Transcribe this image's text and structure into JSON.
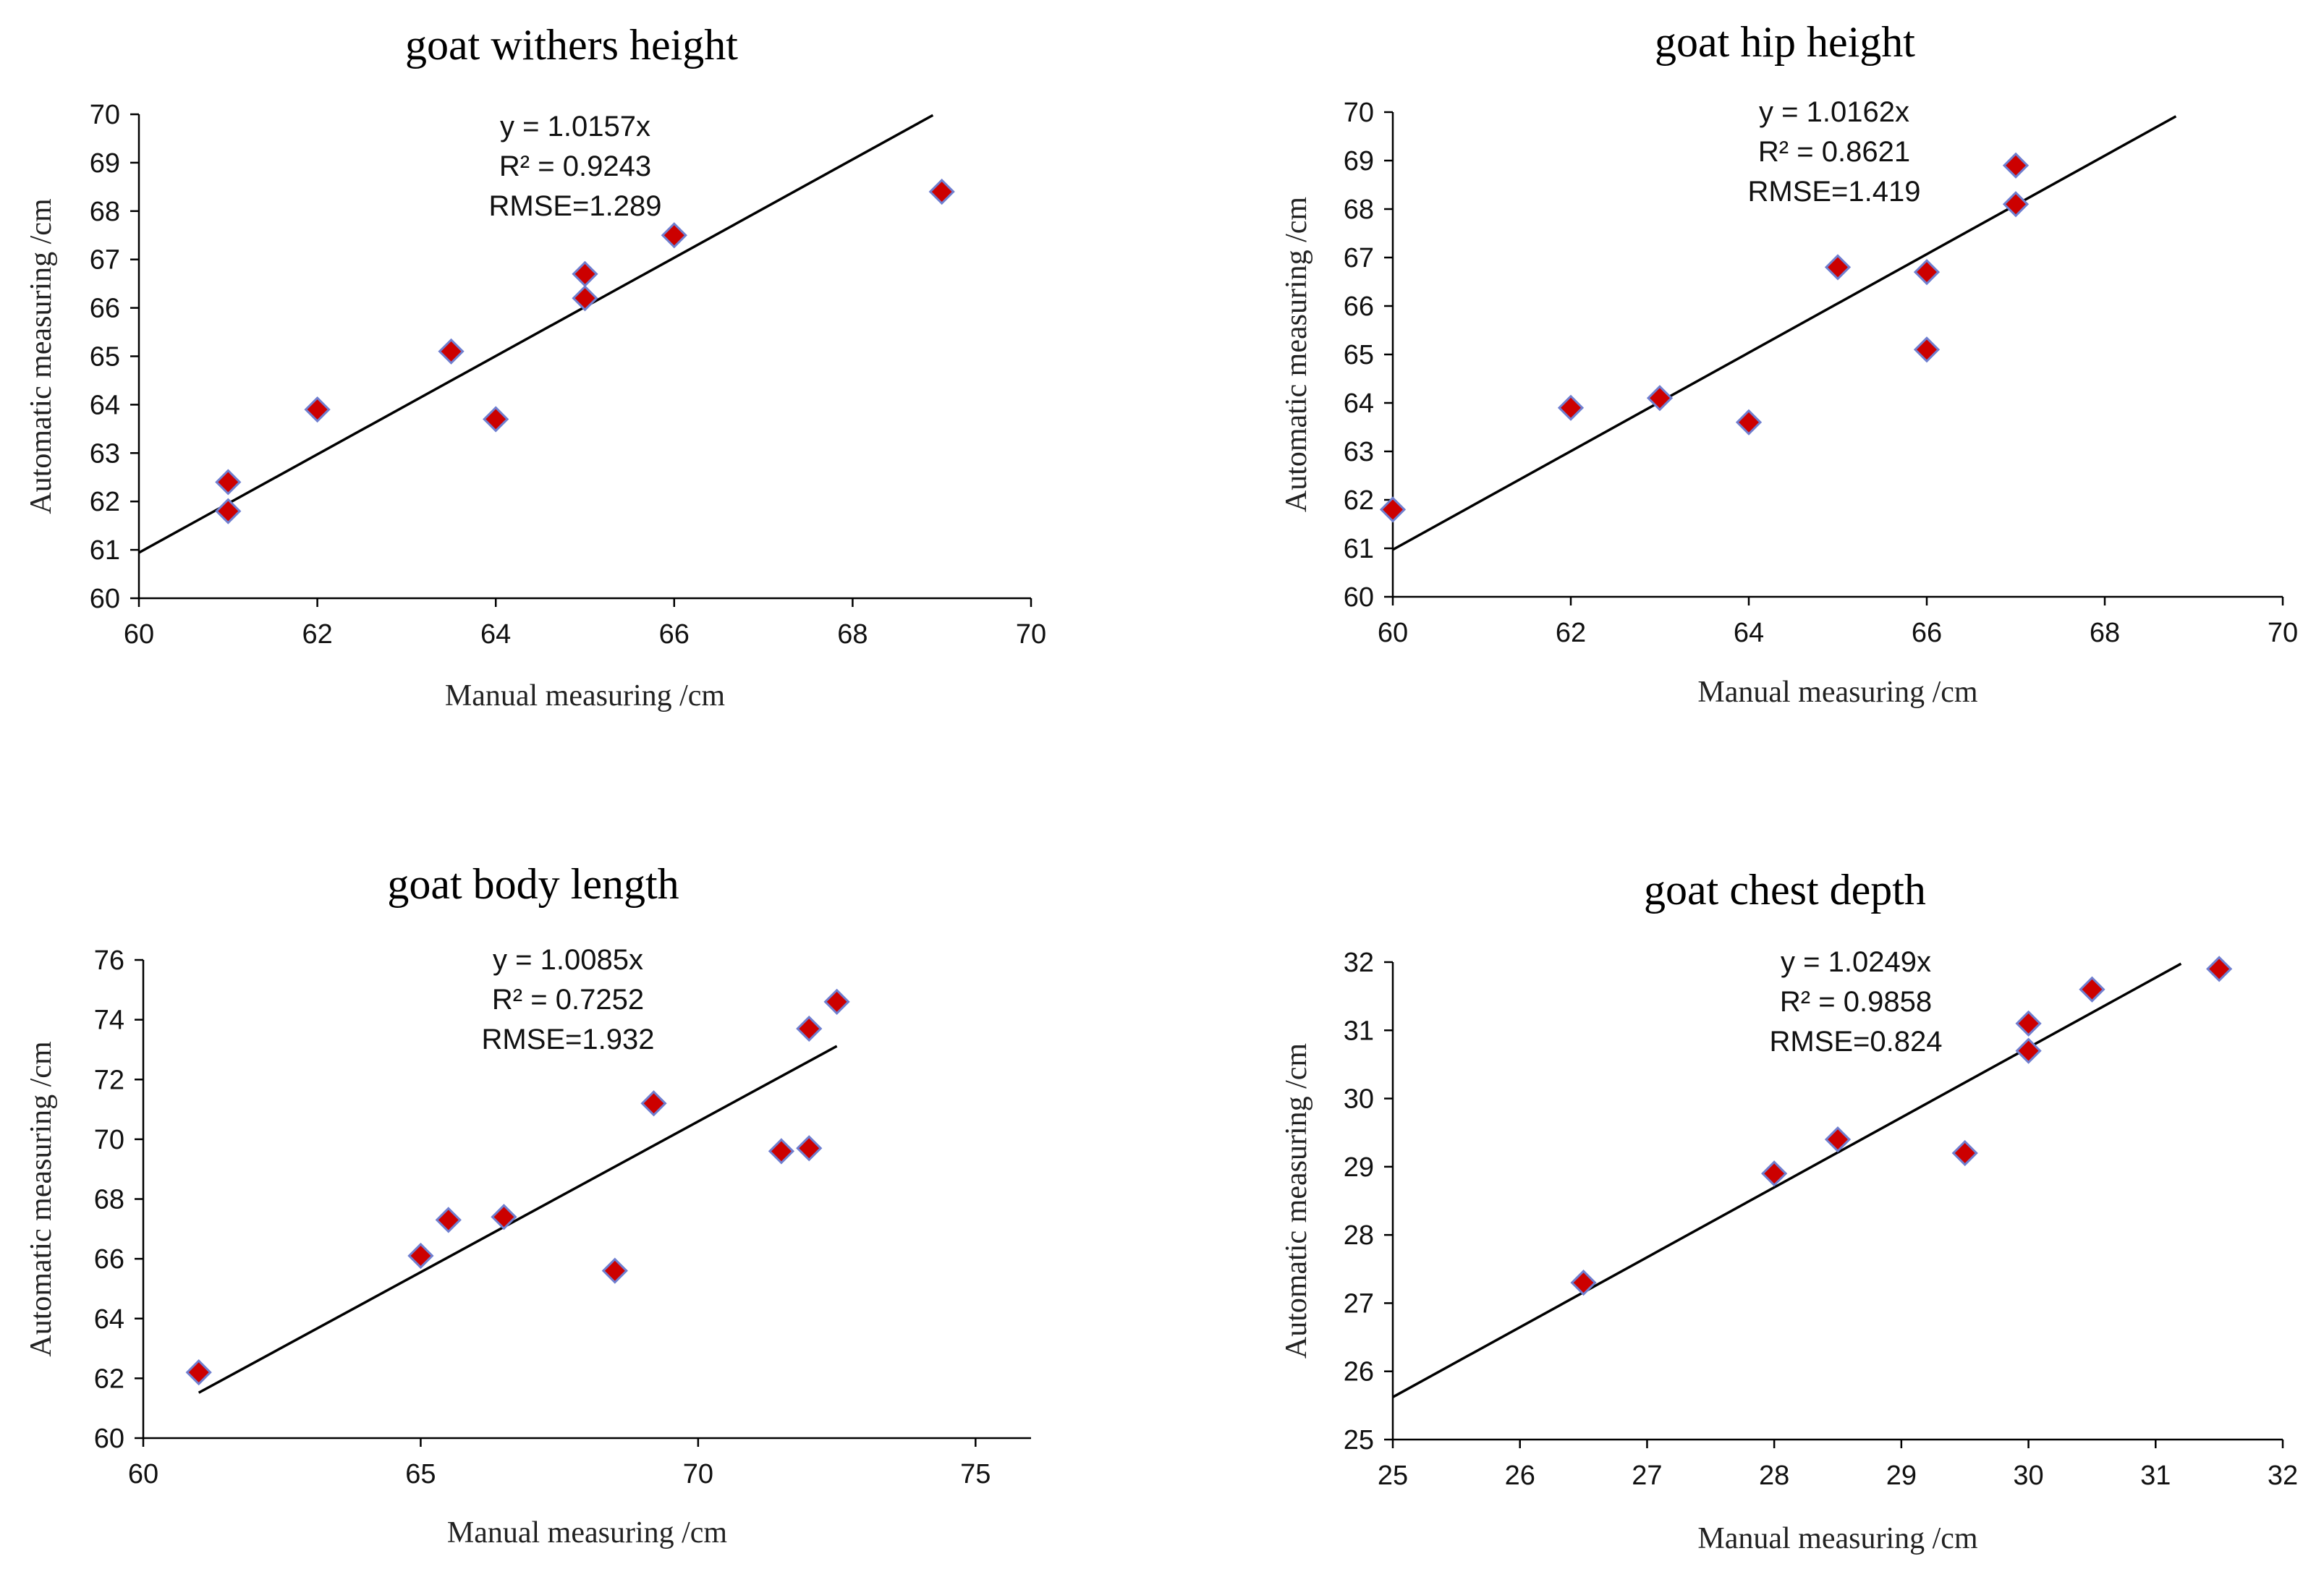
{
  "chart_data": [
    {
      "type": "scatter",
      "title": "goat withers height",
      "xlabel": "Manual measuring  /cm",
      "ylabel": "Automatic measuring  /cm",
      "xlim": [
        60,
        70
      ],
      "ylim": [
        60,
        70
      ],
      "xticks": [
        60,
        62,
        64,
        66,
        68,
        70
      ],
      "yticks": [
        60,
        61,
        62,
        63,
        64,
        65,
        66,
        67,
        68,
        69,
        70
      ],
      "points": [
        {
          "x": 61,
          "y": 62.4
        },
        {
          "x": 61,
          "y": 61.8
        },
        {
          "x": 62,
          "y": 63.9
        },
        {
          "x": 63.5,
          "y": 65.1
        },
        {
          "x": 64,
          "y": 63.7
        },
        {
          "x": 65,
          "y": 66.7
        },
        {
          "x": 65,
          "y": 66.2
        },
        {
          "x": 66,
          "y": 67.5
        },
        {
          "x": 69,
          "y": 68.4
        }
      ],
      "trendline": {
        "slope": 1.0157,
        "x_range": [
          60,
          68.9
        ]
      },
      "annotations": [
        "y = 1.0157x",
        "R² = 0.9243",
        "RMSE=1.289"
      ]
    },
    {
      "type": "scatter",
      "title": "goat hip height",
      "xlabel": "Manual measuring  /cm",
      "ylabel": "Automatic measuring  /cm",
      "xlim": [
        60,
        70
      ],
      "ylim": [
        60,
        70
      ],
      "xticks": [
        60,
        62,
        64,
        66,
        68,
        70
      ],
      "yticks": [
        60,
        61,
        62,
        63,
        64,
        65,
        66,
        67,
        68,
        69,
        70
      ],
      "points": [
        {
          "x": 60,
          "y": 61.8
        },
        {
          "x": 62,
          "y": 63.9
        },
        {
          "x": 63,
          "y": 64.1
        },
        {
          "x": 64,
          "y": 63.6
        },
        {
          "x": 65,
          "y": 66.8
        },
        {
          "x": 66,
          "y": 66.7
        },
        {
          "x": 66,
          "y": 65.1
        },
        {
          "x": 67,
          "y": 68.9
        },
        {
          "x": 67,
          "y": 68.1
        }
      ],
      "trendline": {
        "slope": 1.0162,
        "x_range": [
          60,
          68.8
        ]
      },
      "annotations": [
        "y = 1.0162x",
        "R² = 0.8621",
        "RMSE=1.419"
      ]
    },
    {
      "type": "scatter",
      "title": "goat body length",
      "xlabel": "Manual measuring  /cm",
      "ylabel": "Automatic measuring  /cm",
      "xlim": [
        60,
        76
      ],
      "ylim": [
        60,
        76
      ],
      "xticks": [
        60,
        65,
        70,
        75
      ],
      "yticks": [
        60,
        62,
        64,
        66,
        68,
        70,
        72,
        74,
        76
      ],
      "points": [
        {
          "x": 61,
          "y": 62.2
        },
        {
          "x": 65,
          "y": 66.1
        },
        {
          "x": 65.5,
          "y": 67.3
        },
        {
          "x": 66.5,
          "y": 67.4
        },
        {
          "x": 68.5,
          "y": 65.6
        },
        {
          "x": 69.2,
          "y": 71.2
        },
        {
          "x": 71.5,
          "y": 69.6
        },
        {
          "x": 72,
          "y": 69.7
        },
        {
          "x": 72,
          "y": 73.7
        },
        {
          "x": 72.5,
          "y": 74.6
        }
      ],
      "trendline": {
        "slope": 1.0085,
        "x_range": [
          61,
          72.5
        ]
      },
      "annotations": [
        "y = 1.0085x",
        "R² = 0.7252",
        "RMSE=1.932"
      ]
    },
    {
      "type": "scatter",
      "title": "goat chest depth",
      "xlabel": "Manual measuring  /cm",
      "ylabel": "Automatic measuring  /cm",
      "xlim": [
        25,
        32
      ],
      "ylim": [
        25,
        32
      ],
      "xticks": [
        25,
        26,
        27,
        28,
        29,
        30,
        31,
        32
      ],
      "yticks": [
        25,
        26,
        27,
        28,
        29,
        30,
        31,
        32
      ],
      "points": [
        {
          "x": 26.5,
          "y": 27.3
        },
        {
          "x": 28,
          "y": 28.9
        },
        {
          "x": 28.5,
          "y": 29.4
        },
        {
          "x": 29.5,
          "y": 29.2
        },
        {
          "x": 30,
          "y": 31.1
        },
        {
          "x": 30,
          "y": 30.7
        },
        {
          "x": 30.5,
          "y": 31.6
        },
        {
          "x": 31.5,
          "y": 31.9
        }
      ],
      "trendline": {
        "slope": 1.0249,
        "x_range": [
          25,
          31.2
        ]
      },
      "annotations": [
        "y = 1.0249x",
        "R² = 0.9858",
        "RMSE=0.824"
      ]
    }
  ]
}
